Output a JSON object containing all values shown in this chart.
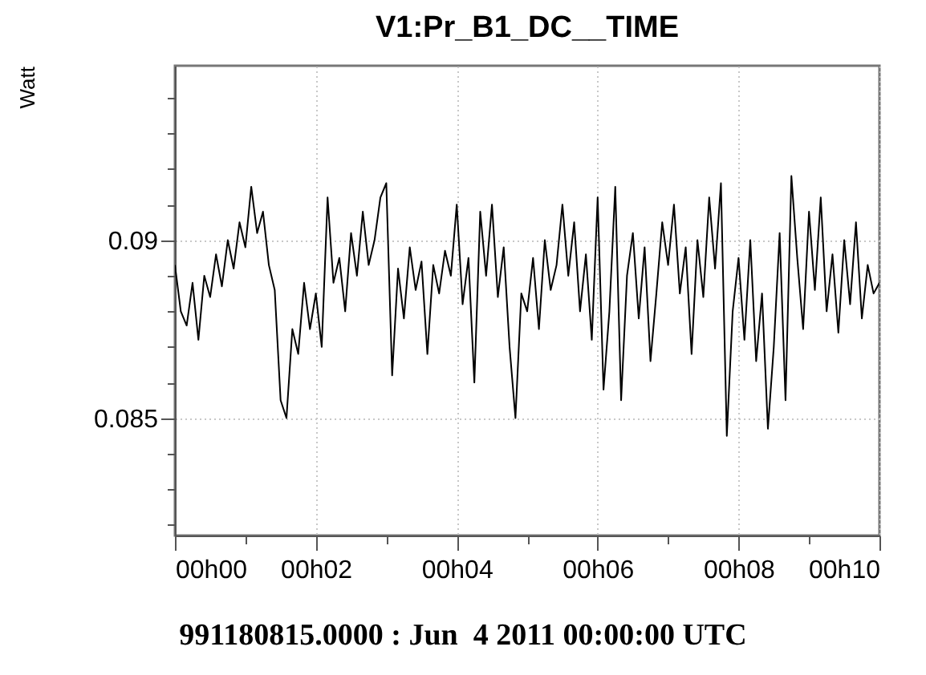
{
  "chart_data": {
    "type": "line",
    "title": "V1:Pr_B1_DC__TIME",
    "ylabel": "Watt",
    "annotations": [
      "991180815.0000 : Jun  4 2011 00:00:00 UTC"
    ],
    "x": [
      "2011-06-04T00:00:00",
      "2011-06-04T00:00:05",
      "2011-06-04T00:00:10",
      "2011-06-04T00:00:15",
      "2011-06-04T00:00:20",
      "2011-06-04T00:00:25",
      "2011-06-04T00:00:30",
      "2011-06-04T00:00:35",
      "2011-06-04T00:00:40",
      "2011-06-04T00:00:45",
      "2011-06-04T00:00:50",
      "2011-06-04T00:00:55",
      "2011-06-04T00:01:00",
      "2011-06-04T00:01:05",
      "2011-06-04T00:01:10",
      "2011-06-04T00:01:15",
      "2011-06-04T00:01:20",
      "2011-06-04T00:01:25",
      "2011-06-04T00:01:30",
      "2011-06-04T00:01:35",
      "2011-06-04T00:01:40",
      "2011-06-04T00:01:45",
      "2011-06-04T00:01:50",
      "2011-06-04T00:01:55",
      "2011-06-04T00:02:00",
      "2011-06-04T00:02:05",
      "2011-06-04T00:02:10",
      "2011-06-04T00:02:15",
      "2011-06-04T00:02:20",
      "2011-06-04T00:02:25",
      "2011-06-04T00:02:30",
      "2011-06-04T00:02:35",
      "2011-06-04T00:02:40",
      "2011-06-04T00:02:45",
      "2011-06-04T00:02:50",
      "2011-06-04T00:02:55",
      "2011-06-04T00:03:00",
      "2011-06-04T00:03:05",
      "2011-06-04T00:03:10",
      "2011-06-04T00:03:15",
      "2011-06-04T00:03:20",
      "2011-06-04T00:03:25",
      "2011-06-04T00:03:30",
      "2011-06-04T00:03:35",
      "2011-06-04T00:03:40",
      "2011-06-04T00:03:45",
      "2011-06-04T00:03:50",
      "2011-06-04T00:03:55",
      "2011-06-04T00:04:00",
      "2011-06-04T00:04:05",
      "2011-06-04T00:04:10",
      "2011-06-04T00:04:15",
      "2011-06-04T00:04:20",
      "2011-06-04T00:04:25",
      "2011-06-04T00:04:30",
      "2011-06-04T00:04:35",
      "2011-06-04T00:04:40",
      "2011-06-04T00:04:45",
      "2011-06-04T00:04:50",
      "2011-06-04T00:04:55",
      "2011-06-04T00:05:00",
      "2011-06-04T00:05:05",
      "2011-06-04T00:05:10",
      "2011-06-04T00:05:15",
      "2011-06-04T00:05:20",
      "2011-06-04T00:05:25",
      "2011-06-04T00:05:30",
      "2011-06-04T00:05:35",
      "2011-06-04T00:05:40",
      "2011-06-04T00:05:45",
      "2011-06-04T00:05:50",
      "2011-06-04T00:05:55",
      "2011-06-04T00:06:00",
      "2011-06-04T00:06:05",
      "2011-06-04T00:06:10",
      "2011-06-04T00:06:15",
      "2011-06-04T00:06:20",
      "2011-06-04T00:06:25",
      "2011-06-04T00:06:30",
      "2011-06-04T00:06:35",
      "2011-06-04T00:06:40",
      "2011-06-04T00:06:45",
      "2011-06-04T00:06:50",
      "2011-06-04T00:06:55",
      "2011-06-04T00:07:00",
      "2011-06-04T00:07:05",
      "2011-06-04T00:07:10",
      "2011-06-04T00:07:15",
      "2011-06-04T00:07:20",
      "2011-06-04T00:07:25",
      "2011-06-04T00:07:30",
      "2011-06-04T00:07:35",
      "2011-06-04T00:07:40",
      "2011-06-04T00:07:45",
      "2011-06-04T00:07:50",
      "2011-06-04T00:07:55",
      "2011-06-04T00:08:00",
      "2011-06-04T00:08:05",
      "2011-06-04T00:08:10",
      "2011-06-04T00:08:15",
      "2011-06-04T00:08:20",
      "2011-06-04T00:08:25",
      "2011-06-04T00:08:30",
      "2011-06-04T00:08:35",
      "2011-06-04T00:08:40",
      "2011-06-04T00:08:45",
      "2011-06-04T00:08:50",
      "2011-06-04T00:08:55",
      "2011-06-04T00:09:00",
      "2011-06-04T00:09:05",
      "2011-06-04T00:09:10",
      "2011-06-04T00:09:15",
      "2011-06-04T00:09:20",
      "2011-06-04T00:09:25",
      "2011-06-04T00:09:30",
      "2011-06-04T00:09:35",
      "2011-06-04T00:09:40",
      "2011-06-04T00:09:45",
      "2011-06-04T00:09:50",
      "2011-06-04T00:09:55",
      "2011-06-04T00:10:00"
    ],
    "series": [
      {
        "color": "#000000",
        "values": [
          0.0893,
          0.088,
          0.0876,
          0.0888,
          0.0872,
          0.089,
          0.0884,
          0.0896,
          0.0887,
          0.09,
          0.0892,
          0.0905,
          0.0898,
          0.0915,
          0.0902,
          0.0908,
          0.0893,
          0.0886,
          0.0855,
          0.085,
          0.0875,
          0.0868,
          0.0888,
          0.0875,
          0.0885,
          0.087,
          0.0912,
          0.0888,
          0.0895,
          0.088,
          0.0902,
          0.089,
          0.0908,
          0.0893,
          0.09,
          0.0912,
          0.0916,
          0.0862,
          0.0892,
          0.0878,
          0.0898,
          0.0886,
          0.0894,
          0.0868,
          0.0893,
          0.0885,
          0.0897,
          0.089,
          0.091,
          0.0882,
          0.0895,
          0.086,
          0.0908,
          0.089,
          0.091,
          0.0884,
          0.0898,
          0.087,
          0.085,
          0.0885,
          0.088,
          0.0895,
          0.0875,
          0.09,
          0.0886,
          0.0893,
          0.091,
          0.089,
          0.0905,
          0.088,
          0.0896,
          0.0872,
          0.0912,
          0.0858,
          0.088,
          0.0915,
          0.0855,
          0.089,
          0.0902,
          0.0878,
          0.0898,
          0.0866,
          0.0885,
          0.0905,
          0.0893,
          0.091,
          0.0885,
          0.0898,
          0.0868,
          0.09,
          0.0884,
          0.0912,
          0.0892,
          0.0916,
          0.0845,
          0.088,
          0.0895,
          0.0872,
          0.09,
          0.0866,
          0.0885,
          0.0847,
          0.087,
          0.0902,
          0.0855,
          0.0918,
          0.0895,
          0.0875,
          0.0908,
          0.0886,
          0.0912,
          0.088,
          0.0896,
          0.0874,
          0.09,
          0.0882,
          0.0905,
          0.0878,
          0.0893,
          0.0885,
          0.0888
        ]
      }
    ],
    "xlim": [
      "2011-06-04T00:00",
      "2011-06-04T00:10"
    ],
    "ylim": [
      0.0817,
      0.0949
    ],
    "xticks": [
      {
        "value": "2011-06-04T00:00",
        "label": "00h00"
      },
      {
        "value": "2011-06-04T00:01",
        "label": null
      },
      {
        "value": "2011-06-04T00:02",
        "label": "00h02"
      },
      {
        "value": "2011-06-04T00:03",
        "label": null
      },
      {
        "value": "2011-06-04T00:04",
        "label": "00h04"
      },
      {
        "value": "2011-06-04T00:05",
        "label": null
      },
      {
        "value": "2011-06-04T00:06",
        "label": "00h06"
      },
      {
        "value": "2011-06-04T00:07",
        "label": null
      },
      {
        "value": "2011-06-04T00:08",
        "label": "00h08"
      },
      {
        "value": "2011-06-04T00:09",
        "label": null
      },
      {
        "value": "2011-06-04T00:10",
        "label": "00h10"
      }
    ],
    "yticks": [
      {
        "value": 0.082,
        "label": null
      },
      {
        "value": 0.083,
        "label": null
      },
      {
        "value": 0.084,
        "label": null
      },
      {
        "value": 0.085,
        "label": "0.085"
      },
      {
        "value": 0.086,
        "label": null
      },
      {
        "value": 0.087,
        "label": null
      },
      {
        "value": 0.088,
        "label": null
      },
      {
        "value": 0.089,
        "label": null
      },
      {
        "value": 0.09,
        "label": "0.09"
      },
      {
        "value": 0.091,
        "label": null
      },
      {
        "value": 0.092,
        "label": null
      },
      {
        "value": 0.093,
        "label": null
      },
      {
        "value": 0.094,
        "label": null
      }
    ],
    "grid": true,
    "line_style": "solid"
  }
}
